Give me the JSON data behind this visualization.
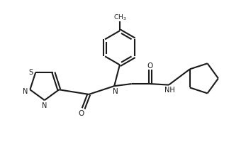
{
  "background_color": "#ffffff",
  "line_color": "#1a1a1a",
  "line_width": 1.5,
  "fig_width": 3.47,
  "fig_height": 2.32,
  "dpi": 100,
  "xlim": [
    0,
    11
  ],
  "ylim": [
    0,
    7.5
  ]
}
